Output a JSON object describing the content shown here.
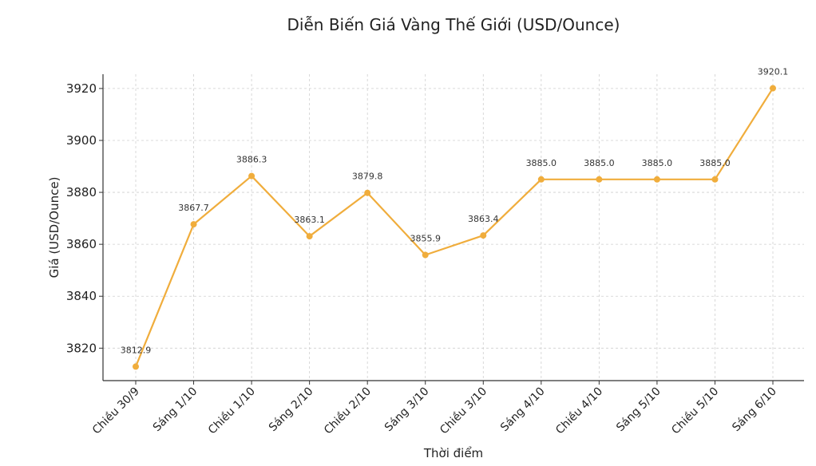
{
  "chart_data": {
    "type": "line",
    "title": "Diễn Biến Giá Vàng Thế Giới (USD/Ounce)",
    "xlabel": "Thời điểm",
    "ylabel": "Giá (USD/Ounce)",
    "categories": [
      "Chiều 30/9",
      "Sáng 1/10",
      "Chiều 1/10",
      "Sáng 2/10",
      "Chiều 2/10",
      "Sáng 3/10",
      "Chiều 3/10",
      "Sáng 4/10",
      "Chiều 4/10",
      "Sáng 5/10",
      "Chiều 5/10",
      "Sáng 6/10"
    ],
    "values": [
      3812.9,
      3867.7,
      3886.3,
      3863.1,
      3879.8,
      3855.9,
      3863.4,
      3885.0,
      3885.0,
      3885.0,
      3885.0,
      3920.1
    ],
    "data_labels": [
      "3812.9",
      "3867.7",
      "3886.3",
      "3863.1",
      "3879.8",
      "3855.9",
      "3863.4",
      "3885.0",
      "3885.0",
      "3885.0",
      "3885.0",
      "3920.1"
    ],
    "yticks": [
      3820,
      3840,
      3860,
      3880,
      3900,
      3920
    ],
    "ylim": [
      3807.5,
      3925.5
    ],
    "grid": true,
    "line_color": "#f0ad3c"
  }
}
